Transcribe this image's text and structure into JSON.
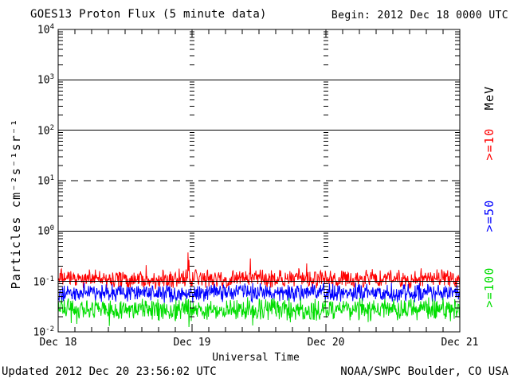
{
  "header": {
    "title": "GOES13 Proton Flux (5 minute data)",
    "begin_label": "Begin: 2012 Dec 18 0000 UTC"
  },
  "footer": {
    "updated": "Updated 2012 Dec 20 23:56:02 UTC",
    "source": "NOAA/SWPC Boulder, CO USA"
  },
  "chart_data": {
    "type": "line",
    "title": "GOES13 Proton Flux (5 minute data)",
    "xlabel": "Universal Time",
    "ylabel": "Particles cm⁻²s⁻¹sr⁻¹",
    "x_tick_labels": [
      "Dec 18",
      "Dec 19",
      "Dec 20",
      "Dec 21"
    ],
    "x_range": "2012 Dec 18 0000 UTC to 2012 Dec 21 0000 UTC",
    "y_tick_exponents": [
      4,
      3,
      2,
      1,
      0,
      -1,
      -2
    ],
    "y_log10_range": [
      -2,
      4
    ],
    "grid": {
      "solid_hlines_log10": [
        3,
        2,
        0,
        -1
      ],
      "dashed_hlines_log10": [
        1
      ],
      "vertical_tick_columns_at_days": [
        1,
        2
      ],
      "minor_ticks": "log decades n=2..9, 3-hour x ticks"
    },
    "cadence_minutes": 5,
    "points_per_series": 864,
    "legend": {
      "unit": "MeV",
      "entries": [
        {
          "label": ">=10",
          "color": "#ff0000"
        },
        {
          "label": ">=50",
          "color": "#0000ff"
        },
        {
          "label": ">=100",
          "color": "#00dd00"
        }
      ]
    },
    "series": [
      {
        "name": "ge10",
        "label": ">=10 MeV",
        "color": "#ff0000",
        "approx_log10_mean": -0.95,
        "approx_log10_spread": 0.22,
        "spike_prob": 0.012,
        "spike_log10_mag": 0.4,
        "approx_flux_mean": 0.11,
        "approx_flux_range": [
          0.07,
          0.3
        ]
      },
      {
        "name": "ge50",
        "label": ">=50 MeV",
        "color": "#0000ff",
        "approx_log10_mean": -1.22,
        "approx_log10_spread": 0.21,
        "spike_prob": 0.006,
        "spike_log10_mag": 0.25,
        "approx_flux_mean": 0.06,
        "approx_flux_range": [
          0.035,
          0.14
        ]
      },
      {
        "name": "ge100",
        "label": ">=100 MeV",
        "color": "#00dd00",
        "approx_log10_mean": -1.56,
        "approx_log10_spread": 0.26,
        "spike_prob": 0.012,
        "spike_log10_mag": -0.3,
        "approx_flux_mean": 0.028,
        "approx_flux_range": [
          0.013,
          0.06
        ]
      }
    ]
  }
}
